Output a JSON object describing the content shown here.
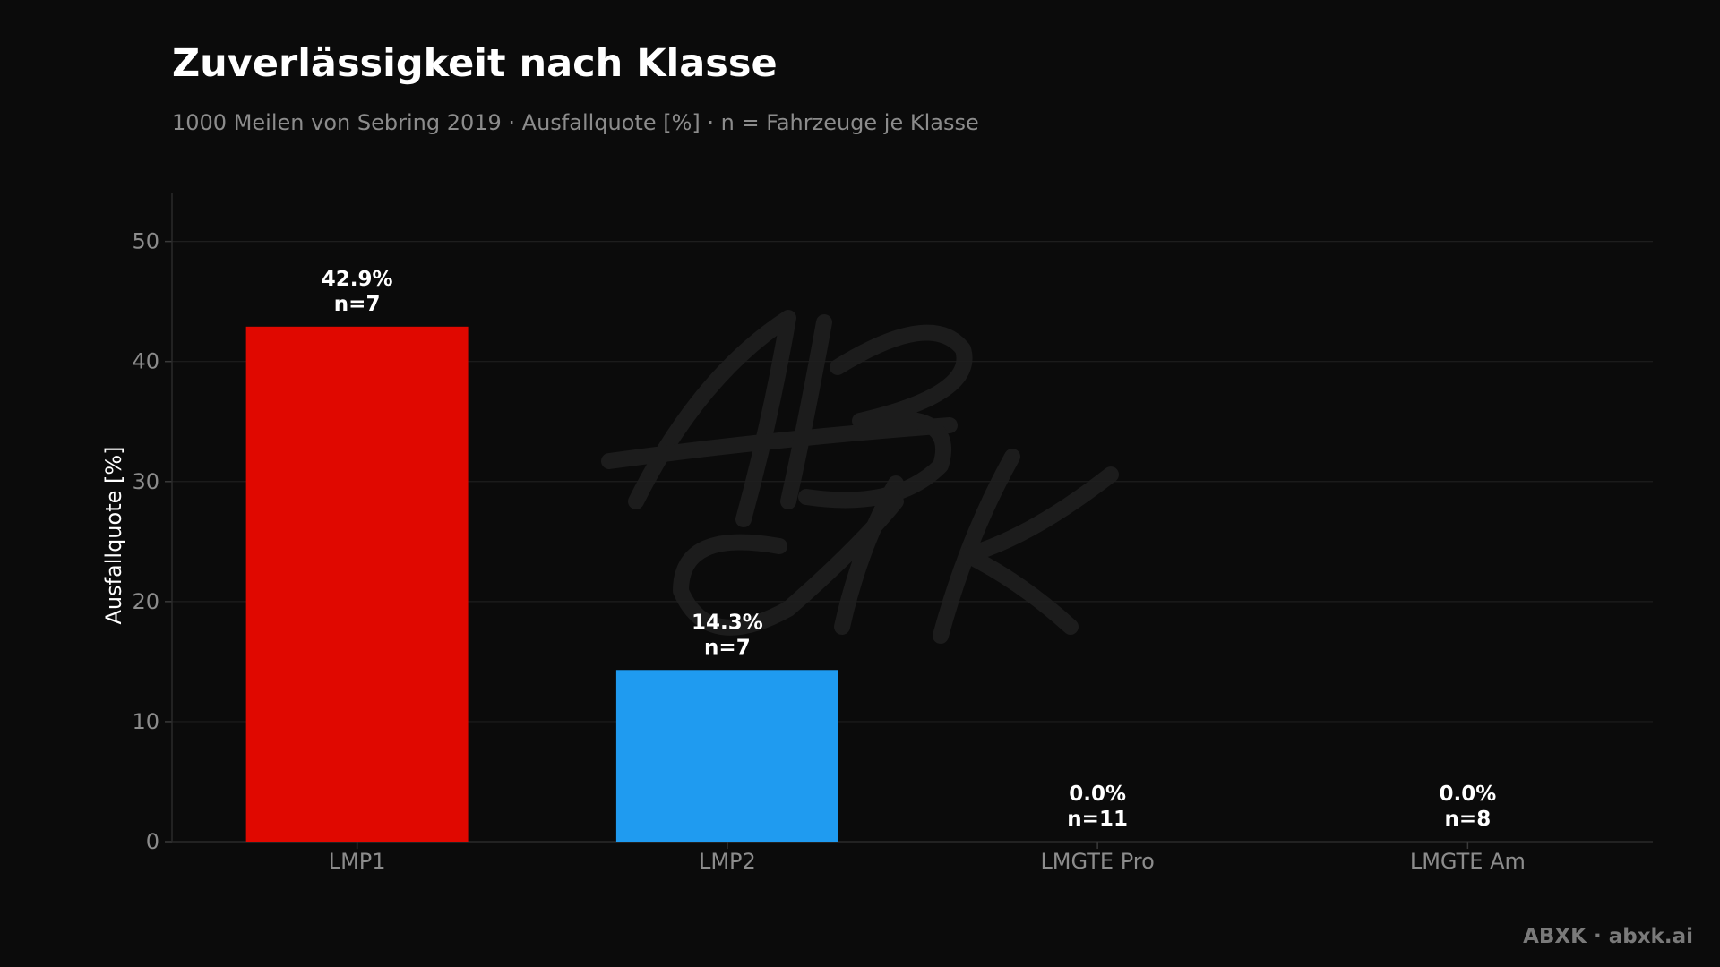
{
  "chart_data": {
    "type": "bar",
    "title": "Zuverlässigkeit nach Klasse",
    "subtitle": "1000 Meilen von Sebring 2019 · Ausfallquote [%] · n = Fahrzeuge je Klasse",
    "xlabel": "",
    "ylabel": "Ausfallquote [%]",
    "ylim": [
      0,
      54
    ],
    "yticks": [
      0,
      10,
      20,
      30,
      40,
      50
    ],
    "grid": true,
    "categories": [
      "LMP1",
      "LMP2",
      "LMGTE Pro",
      "LMGTE Am"
    ],
    "values": [
      42.9,
      14.3,
      0.0,
      0.0
    ],
    "counts": [
      7,
      7,
      11,
      8
    ],
    "value_labels": [
      "42.9%",
      "14.3%",
      "0.0%",
      "0.0%"
    ],
    "count_labels": [
      "n=7",
      "n=7",
      "n=11",
      "n=8"
    ],
    "bar_colors": [
      "#e00800",
      "#1f9bf0",
      "#8c8c8c",
      "#8c8c8c"
    ]
  },
  "watermark": "ABXK",
  "footer": "ABXK · abxk.ai",
  "colors": {
    "background": "#0b0b0b",
    "text": "#ffffff",
    "muted": "#8c8c8c",
    "grid": "#1e1e1e"
  }
}
